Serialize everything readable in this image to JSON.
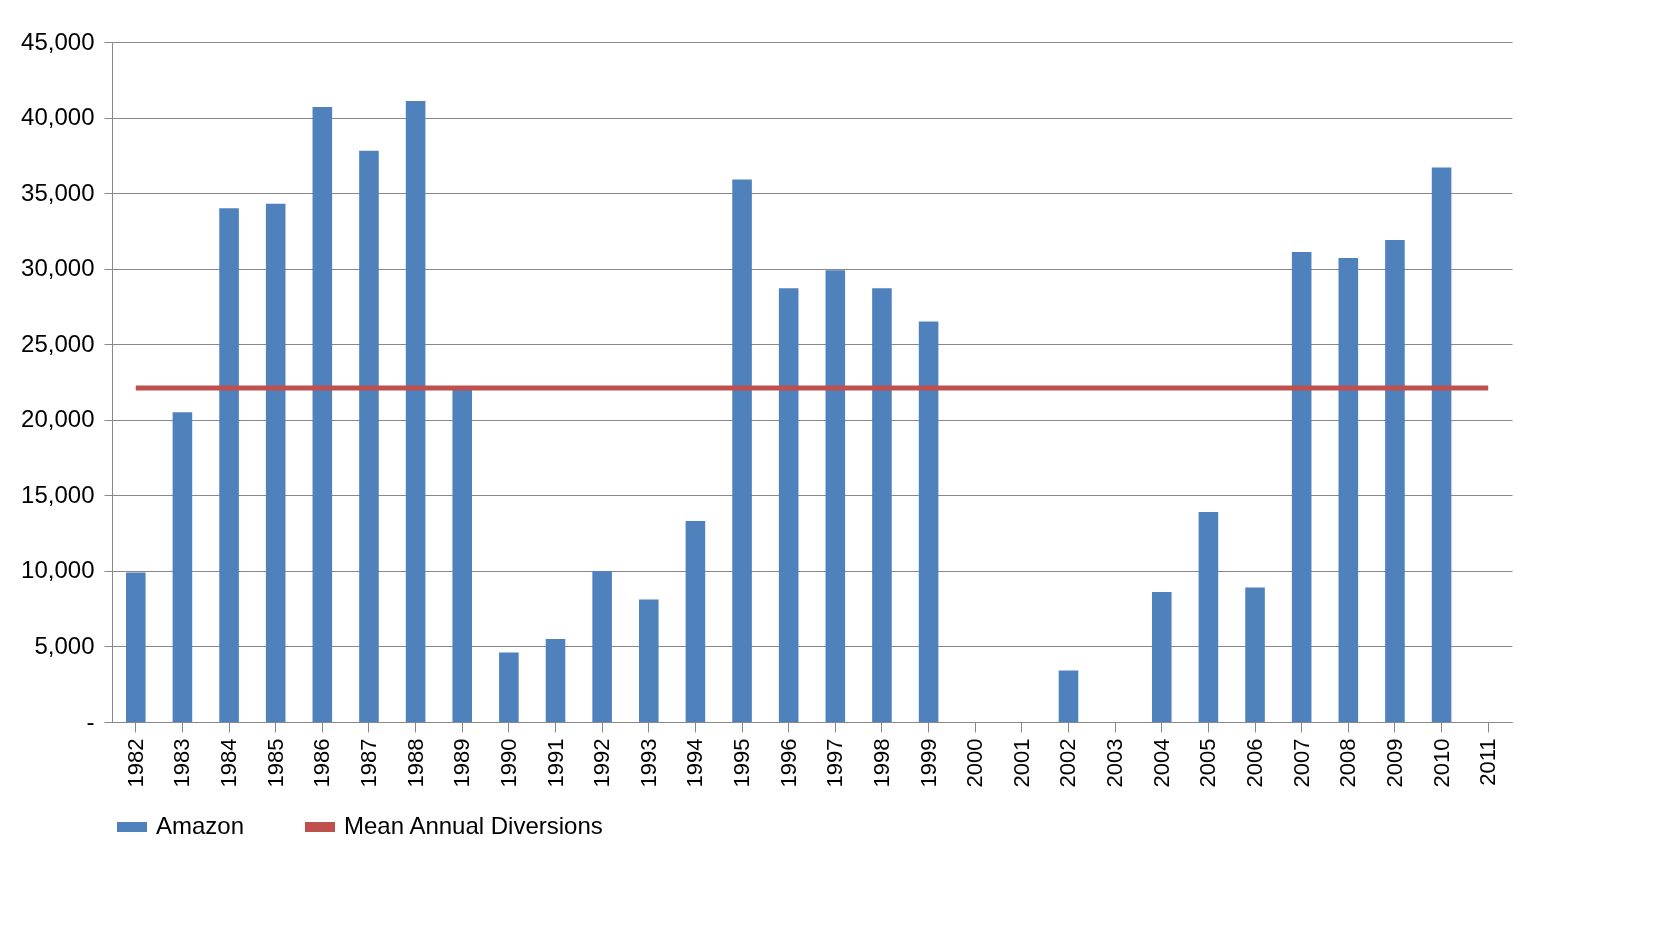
{
  "chart_data": {
    "type": "bar",
    "categories": [
      "1982",
      "1983",
      "1984",
      "1985",
      "1986",
      "1987",
      "1988",
      "1989",
      "1990",
      "1991",
      "1992",
      "1993",
      "1994",
      "1995",
      "1996",
      "1997",
      "1998",
      "1999",
      "2000",
      "2001",
      "2002",
      "2003",
      "2004",
      "2005",
      "2006",
      "2007",
      "2008",
      "2009",
      "2010",
      "2011"
    ],
    "series": [
      {
        "name": "Amazon",
        "color": "#4f81bd",
        "values": [
          9900,
          20500,
          34000,
          34300,
          40700,
          37800,
          41100,
          22000,
          4600,
          5500,
          10000,
          8100,
          13300,
          35900,
          28700,
          29900,
          28700,
          26500,
          0,
          0,
          3400,
          0,
          8600,
          13900,
          8900,
          31100,
          30700,
          31900,
          36700,
          0
        ]
      },
      {
        "name": "Mean Annual Diversions",
        "type": "line",
        "color": "#c0504d",
        "values": [
          22100,
          22100,
          22100,
          22100,
          22100,
          22100,
          22100,
          22100,
          22100,
          22100,
          22100,
          22100,
          22100,
          22100,
          22100,
          22100,
          22100,
          22100,
          22100,
          22100,
          22100,
          22100,
          22100,
          22100,
          22100,
          22100,
          22100,
          22100,
          22100,
          22100
        ]
      }
    ],
    "ylim": [
      0,
      45000
    ],
    "yticks": [
      {
        "value": 0,
        "label": "-"
      },
      {
        "value": 5000,
        "label": "5,000"
      },
      {
        "value": 10000,
        "label": "10,000"
      },
      {
        "value": 15000,
        "label": "15,000"
      },
      {
        "value": 20000,
        "label": "20,000"
      },
      {
        "value": 25000,
        "label": "25,000"
      },
      {
        "value": 30000,
        "label": "30,000"
      },
      {
        "value": 35000,
        "label": "35,000"
      },
      {
        "value": 40000,
        "label": "40,000"
      },
      {
        "value": 45000,
        "label": "45,000"
      }
    ],
    "grid": "y",
    "legend": "bottom",
    "marker": "none"
  }
}
